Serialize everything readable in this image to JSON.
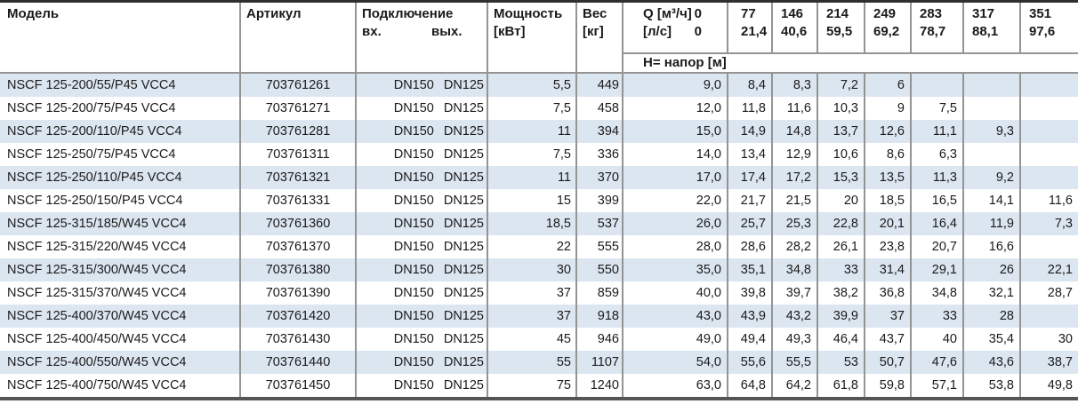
{
  "colors": {
    "row_alt_blue": "#dce6f1",
    "grid_gray": "#949494",
    "frame_top_dark": "#2f2f2f",
    "frame_bottom_gray": "#555555",
    "text": "#1a1a1a"
  },
  "table": {
    "header": {
      "model": "Модель",
      "article": "Артикул",
      "connection": "Подключение",
      "inlet": "вх.",
      "outlet": "вых.",
      "power_line1": "Мощность",
      "power_line2": "[кВт]",
      "weight_line1": "Вес",
      "weight_line2": "[кг]",
      "q_unit_m3h": "Q [м³/ч]",
      "q_zero_m3h": "0",
      "q_unit_ls": "[л/с]",
      "q_zero_ls": "0",
      "head_label": "H= напор [м]",
      "q_columns": [
        {
          "m3h": "77",
          "ls": "21,4"
        },
        {
          "m3h": "146",
          "ls": "40,6"
        },
        {
          "m3h": "214",
          "ls": "59,5"
        },
        {
          "m3h": "249",
          "ls": "69,2"
        },
        {
          "m3h": "283",
          "ls": "78,7"
        },
        {
          "m3h": "317",
          "ls": "88,1"
        },
        {
          "m3h": "351",
          "ls": "97,6"
        }
      ]
    },
    "rows": [
      {
        "model": "NSCF 125-200/55/P45 VCC4",
        "article": "703761261",
        "inlet": "DN150",
        "outlet": "DN125",
        "power": "5,5",
        "weight": "449",
        "head": [
          "9,0",
          "8,4",
          "8,3",
          "7,2",
          "6",
          "",
          "",
          ""
        ]
      },
      {
        "model": "NSCF 125-200/75/P45 VCC4",
        "article": "703761271",
        "inlet": "DN150",
        "outlet": "DN125",
        "power": "7,5",
        "weight": "458",
        "head": [
          "12,0",
          "11,8",
          "11,6",
          "10,3",
          "9",
          "7,5",
          "",
          ""
        ]
      },
      {
        "model": "NSCF 125-200/110/P45 VCC4",
        "article": "703761281",
        "inlet": "DN150",
        "outlet": "DN125",
        "power": "11",
        "weight": "394",
        "head": [
          "15,0",
          "14,9",
          "14,8",
          "13,7",
          "12,6",
          "11,1",
          "9,3",
          ""
        ]
      },
      {
        "model": "NSCF 125-250/75/P45 VCC4",
        "article": "703761311",
        "inlet": "DN150",
        "outlet": "DN125",
        "power": "7,5",
        "weight": "336",
        "head": [
          "14,0",
          "13,4",
          "12,9",
          "10,6",
          "8,6",
          "6,3",
          "",
          ""
        ]
      },
      {
        "model": "NSCF 125-250/110/P45 VCC4",
        "article": "703761321",
        "inlet": "DN150",
        "outlet": "DN125",
        "power": "11",
        "weight": "370",
        "head": [
          "17,0",
          "17,4",
          "17,2",
          "15,3",
          "13,5",
          "11,3",
          "9,2",
          ""
        ]
      },
      {
        "model": "NSCF 125-250/150/P45 VCC4",
        "article": "703761331",
        "inlet": "DN150",
        "outlet": "DN125",
        "power": "15",
        "weight": "399",
        "head": [
          "22,0",
          "21,7",
          "21,5",
          "20",
          "18,5",
          "16,5",
          "14,1",
          "11,6"
        ]
      },
      {
        "model": "NSCF 125-315/185/W45 VCC4",
        "article": "703761360",
        "inlet": "DN150",
        "outlet": "DN125",
        "power": "18,5",
        "weight": "537",
        "head": [
          "26,0",
          "25,7",
          "25,3",
          "22,8",
          "20,1",
          "16,4",
          "11,9",
          "7,3"
        ]
      },
      {
        "model": "NSCF 125-315/220/W45 VCC4",
        "article": "703761370",
        "inlet": "DN150",
        "outlet": "DN125",
        "power": "22",
        "weight": "555",
        "head": [
          "28,0",
          "28,6",
          "28,2",
          "26,1",
          "23,8",
          "20,7",
          "16,6",
          ""
        ]
      },
      {
        "model": "NSCF 125-315/300/W45 VCC4",
        "article": "703761380",
        "inlet": "DN150",
        "outlet": "DN125",
        "power": "30",
        "weight": "550",
        "head": [
          "35,0",
          "35,1",
          "34,8",
          "33",
          "31,4",
          "29,1",
          "26",
          "22,1"
        ]
      },
      {
        "model": "NSCF 125-315/370/W45 VCC4",
        "article": "703761390",
        "inlet": "DN150",
        "outlet": "DN125",
        "power": "37",
        "weight": "859",
        "head": [
          "40,0",
          "39,8",
          "39,7",
          "38,2",
          "36,8",
          "34,8",
          "32,1",
          "28,7"
        ]
      },
      {
        "model": "NSCF 125-400/370/W45 VCC4",
        "article": "703761420",
        "inlet": "DN150",
        "outlet": "DN125",
        "power": "37",
        "weight": "918",
        "head": [
          "43,0",
          "43,9",
          "43,2",
          "39,9",
          "37",
          "33",
          "28",
          ""
        ]
      },
      {
        "model": "NSCF 125-400/450/W45 VCC4",
        "article": "703761430",
        "inlet": "DN150",
        "outlet": "DN125",
        "power": "45",
        "weight": "946",
        "head": [
          "49,0",
          "49,4",
          "49,3",
          "46,4",
          "43,7",
          "40",
          "35,4",
          "30"
        ]
      },
      {
        "model": "NSCF 125-400/550/W45 VCC4",
        "article": "703761440",
        "inlet": "DN150",
        "outlet": "DN125",
        "power": "55",
        "weight": "1107",
        "head": [
          "54,0",
          "55,6",
          "55,5",
          "53",
          "50,7",
          "47,6",
          "43,6",
          "38,7"
        ]
      },
      {
        "model": "NSCF 125-400/750/W45 VCC4",
        "article": "703761450",
        "inlet": "DN150",
        "outlet": "DN125",
        "power": "75",
        "weight": "1240",
        "head": [
          "63,0",
          "64,8",
          "64,2",
          "61,8",
          "59,8",
          "57,1",
          "53,8",
          "49,8"
        ]
      }
    ]
  }
}
